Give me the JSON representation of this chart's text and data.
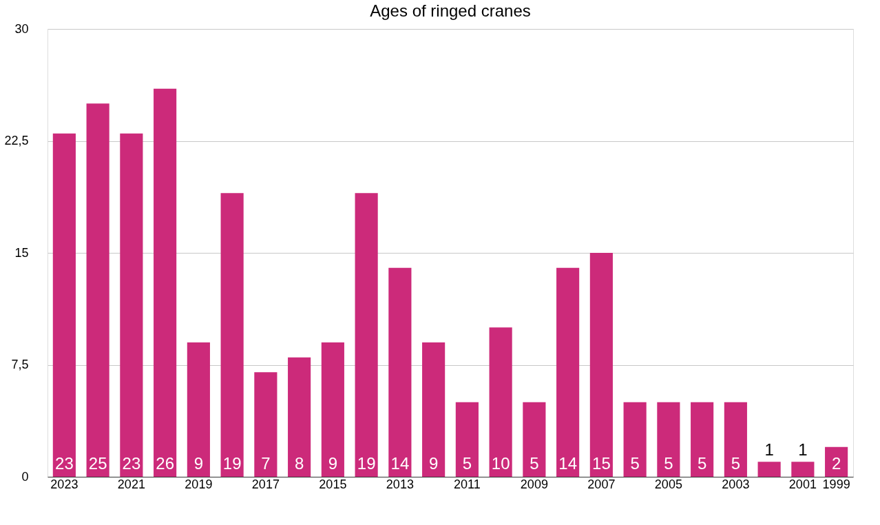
{
  "chart_data": {
    "type": "bar",
    "title": "Ages of ringed cranes",
    "categories": [
      "2023",
      null,
      "2021",
      null,
      "2019",
      null,
      "2017",
      null,
      "2015",
      null,
      "2013",
      null,
      "2011",
      null,
      "2009",
      null,
      "2007",
      null,
      "2005",
      null,
      "2003",
      null,
      "2001",
      null,
      "1999"
    ],
    "values": [
      23,
      25,
      23,
      26,
      9,
      19,
      7,
      8,
      9,
      19,
      14,
      9,
      5,
      10,
      5,
      14,
      15,
      5,
      5,
      5,
      5,
      1,
      1,
      null,
      2
    ],
    "color": "#cc2a7a",
    "ylim": [
      0,
      30
    ],
    "yticks": [
      0,
      {
        "value": 7.5,
        "label": "7,5"
      },
      15,
      {
        "value": 22.5,
        "label": "22,5"
      },
      30
    ],
    "grid": "y",
    "data_labels": true
  }
}
